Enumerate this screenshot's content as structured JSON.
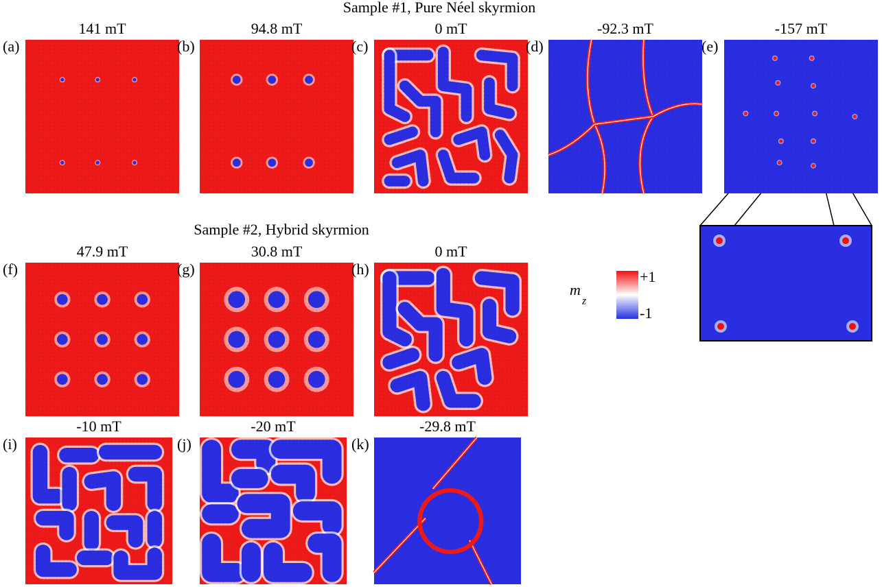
{
  "figure": {
    "sections": [
      {
        "title": "Sample #1, Pure Néel skyrmion"
      },
      {
        "title": "Sample #2, Hybrid skyrmion"
      }
    ],
    "panels": [
      {
        "label": "(a)",
        "field": "141 mT"
      },
      {
        "label": "(b)",
        "field": "94.8 mT"
      },
      {
        "label": "(c)",
        "field": "0 mT"
      },
      {
        "label": "(d)",
        "field": "-92.3 mT"
      },
      {
        "label": "(e)",
        "field": "-157 mT"
      },
      {
        "label": "(f)",
        "field": "47.9 mT"
      },
      {
        "label": "(g)",
        "field": "30.8 mT"
      },
      {
        "label": "(h)",
        "field": "0 mT"
      },
      {
        "label": "(i)",
        "field": "-10 mT"
      },
      {
        "label": "(j)",
        "field": "-20 mT"
      },
      {
        "label": "(k)",
        "field": "-29.8 mT"
      }
    ],
    "colorbar": {
      "symbol": "m",
      "subscript": "z",
      "max_label": "+1",
      "min_label": "-1"
    }
  }
}
